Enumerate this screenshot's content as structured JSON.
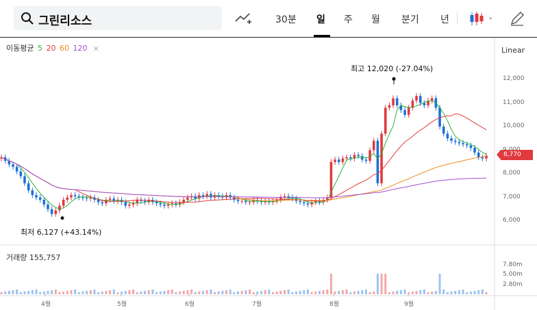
{
  "toolbar": {
    "search_value": "그린리소스",
    "tabs": [
      "30분",
      "일",
      "주",
      "월",
      "분기",
      "년"
    ],
    "active_tab": "일"
  },
  "legend": {
    "label": "이동평균",
    "periods": [
      {
        "value": "5",
        "color": "#2bb13a"
      },
      {
        "value": "20",
        "color": "#e53b3b"
      },
      {
        "value": "60",
        "color": "#f08a1c"
      },
      {
        "value": "120",
        "color": "#a04fcf"
      }
    ]
  },
  "scale_mode": "Linear",
  "annotations": {
    "high": "최고  12,020 (-27.04%)",
    "low": "최저  6,127 (+43.14%)"
  },
  "volume_label": "거래량 155,757",
  "current_price": "8,770",
  "colors": {
    "up": "#e03a3e",
    "down": "#1e6fd9",
    "accent": "#e03a3e"
  },
  "chart_data": {
    "type": "candlestick",
    "x_ticks": [
      "4월",
      "5월",
      "6월",
      "7월",
      "8월",
      "9월"
    ],
    "y_ticks": [
      "12,000",
      "11,000",
      "10,000",
      "9,000",
      "8,000",
      "7,000",
      "6,000"
    ],
    "ylim": [
      5600,
      12500
    ],
    "volume_ticks": [
      "7.80m",
      "5.00m",
      "2.80m"
    ],
    "high": 12020,
    "low": 6127,
    "close": 8770,
    "ma_colors": {
      "ma5": "#2bb13a",
      "ma20": "#e53b3b",
      "ma60": "#f08a1c",
      "ma120": "#a04fcf"
    },
    "close_series": [
      8700,
      8550,
      8400,
      8300,
      8100,
      7900,
      7600,
      7300,
      7100,
      7000,
      6900,
      6700,
      6500,
      6300,
      6450,
      6650,
      6900,
      7000,
      7100,
      7050,
      7000,
      6980,
      6950,
      7000,
      6900,
      6800,
      6750,
      6900,
      6950,
      6850,
      6900,
      6800,
      6650,
      6700,
      6750,
      6900,
      6850,
      6800,
      6900,
      6800,
      6750,
      6700,
      6650,
      6700,
      6750,
      6700,
      6800,
      6900,
      7000,
      7050,
      6950,
      7100,
      7050,
      7150,
      7000,
      7100,
      7050,
      7000,
      7100,
      7000,
      6900,
      6850,
      6850,
      6800,
      6800,
      6900,
      6850,
      6800,
      6820,
      6800,
      6850,
      6900,
      7000,
      7050,
      7000,
      6950,
      6850,
      6800,
      6750,
      6700,
      6800,
      6850,
      6800,
      6900,
      7000,
      8500,
      8600,
      8500,
      8650,
      8700,
      8650,
      8800,
      8750,
      8600,
      8550,
      9000,
      9400,
      7600,
      9700,
      10800,
      10900,
      11200,
      10900,
      10700,
      10500,
      10800,
      11100,
      11300,
      11000,
      10900,
      11100,
      11200,
      10800,
      10000,
      9700,
      9500,
      9400,
      9350,
      9300,
      9250,
      9200,
      9100,
      8900,
      8700,
      8650,
      8770
    ]
  }
}
